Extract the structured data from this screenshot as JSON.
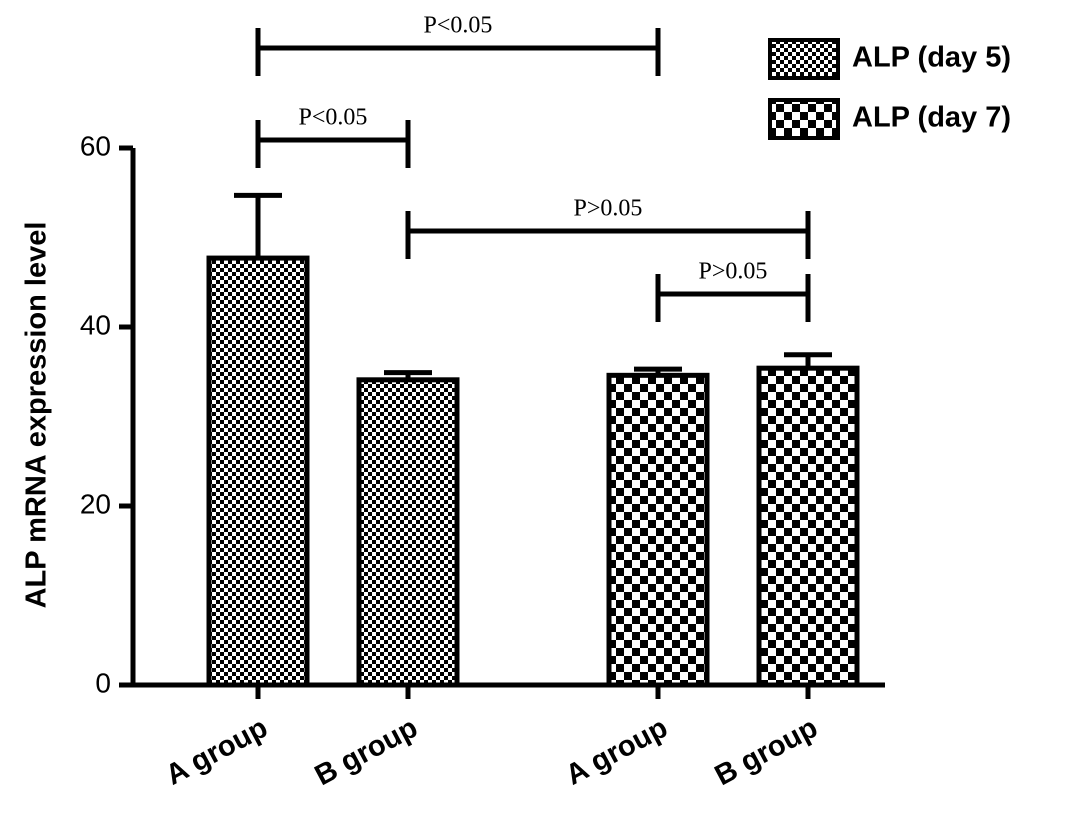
{
  "chart_data": {
    "type": "bar",
    "y_label": "ALP mRNA expression level",
    "categories": [
      "A group",
      "B group",
      "A group",
      "B group"
    ],
    "series": [
      {
        "name": "ALP (day 5)",
        "color": "#000000",
        "values": [
          47.7,
          34.1,
          null,
          null
        ],
        "errors": [
          7.0,
          0.8,
          null,
          null
        ]
      },
      {
        "name": "ALP (day 7)",
        "color": "#000000",
        "values": [
          null,
          null,
          34.6,
          35.4
        ],
        "errors": [
          null,
          null,
          0.7,
          1.5
        ]
      }
    ],
    "ylim": [
      0,
      60
    ],
    "yticks": [
      0,
      20,
      40,
      60
    ],
    "legend": "top-right",
    "annotations": [
      {
        "text": "P<0.05",
        "between": [
          0,
          2
        ]
      },
      {
        "text": "P<0.05",
        "between": [
          0,
          1
        ]
      },
      {
        "text": "P>0.05",
        "between": [
          1,
          3
        ]
      },
      {
        "text": "P>0.05",
        "between": [
          2,
          3
        ]
      }
    ]
  }
}
